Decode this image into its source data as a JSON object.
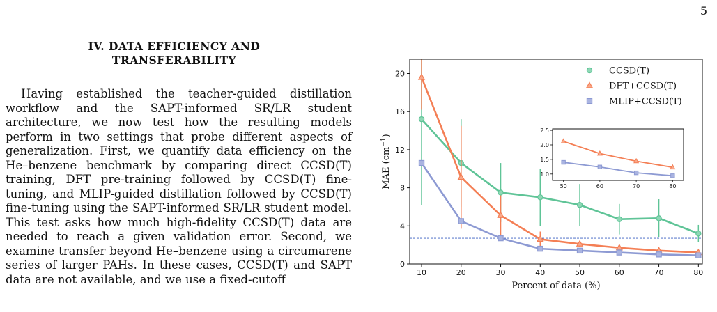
{
  "page": {
    "number": "5"
  },
  "section": {
    "title_line1": "IV.   DATA EFFICIENCY AND",
    "title_line2": "TRANSFERABILITY",
    "paragraph": "Having established the teacher-guided distillation workflow and the SAPT-informed SR/LR student architecture, we now test how the resulting models perform in two settings that probe different aspects of generalization. First, we quantify data efficiency on the He–benzene benchmark by comparing direct CCSD(T) training, DFT pre-training followed by CCSD(T) fine-tuning, and MLIP-guided distillation followed by CCSD(T) fine-tuning using the SAPT-informed SR/LR student model. This test asks how much high-fidelity CCSD(T) data are needed to reach a given validation error. Second, we examine transfer beyond He–benzene using a circumarene series of larger PAHs. In these cases, CCSD(T) and SAPT data are not available, and we use a fixed-cutoff"
  },
  "chart_data": {
    "type": "line",
    "xlabel": "Percent of data (%)",
    "ylabel": "MAE (cm",
    "ylabel_sup": "−1",
    "ylabel_close": ")",
    "xlim": [
      7,
      81
    ],
    "ylim": [
      0,
      21.5
    ],
    "xticks": [
      10,
      20,
      30,
      40,
      50,
      60,
      70,
      80
    ],
    "yticks": [
      0,
      4,
      8,
      12,
      16,
      20
    ],
    "x": [
      10,
      20,
      30,
      40,
      50,
      60,
      70,
      80
    ],
    "legend_position": "top-right",
    "reference_lines": [
      4.5,
      2.7
    ],
    "series": [
      {
        "name": "CCSD(T)",
        "marker": "circle",
        "color": "#5fc497",
        "marker_fill": "#8fd8b6",
        "values": [
          15.2,
          10.6,
          7.5,
          7.0,
          6.2,
          4.7,
          4.8,
          3.2
        ],
        "errors": [
          9.0,
          4.6,
          3.1,
          3.0,
          2.2,
          1.6,
          2.0,
          0.9
        ]
      },
      {
        "name": "DFT+CCSD(T)",
        "marker": "triangle",
        "color": "#f47f55",
        "marker_fill": "#f9a98b",
        "values": [
          19.6,
          9.1,
          5.1,
          2.6,
          2.1,
          1.7,
          1.4,
          1.2
        ],
        "errors": [
          3.4,
          5.4,
          2.1,
          0.8,
          0.3,
          0.2,
          0.2,
          0.1
        ]
      },
      {
        "name": "MLIP+CCSD(T)",
        "marker": "square",
        "color": "#8d9ad3",
        "marker_fill": "#aab4e1",
        "values": [
          10.6,
          4.5,
          2.7,
          1.6,
          1.4,
          1.2,
          1.0,
          0.9
        ],
        "errors": [
          0.3,
          0.3,
          0.2,
          0.1,
          0.1,
          0.1,
          0.1,
          0.1
        ]
      }
    ],
    "inset": {
      "x": [
        50,
        60,
        70,
        80
      ],
      "xticks": [
        50,
        60,
        70,
        80
      ],
      "yticks": [
        1.0,
        1.5,
        2.0,
        2.5
      ],
      "ytick_labels": [
        "1.0",
        "1.5",
        "2.0",
        "2.5"
      ],
      "ylim": [
        0.78,
        2.55
      ],
      "xlim": [
        47,
        83
      ],
      "series": [
        {
          "name": "DFT+CCSD(T)",
          "values": [
            2.12,
            1.7,
            1.44,
            1.23
          ]
        },
        {
          "name": "MLIP+CCSD(T)",
          "values": [
            1.4,
            1.24,
            1.04,
            0.94
          ]
        }
      ]
    }
  }
}
